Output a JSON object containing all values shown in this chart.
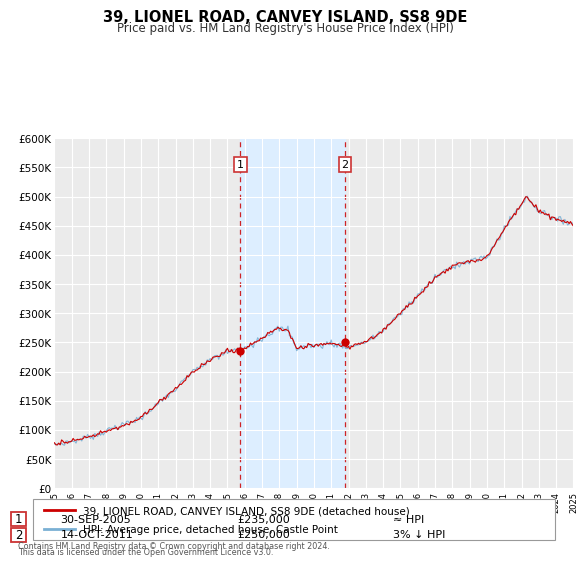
{
  "title": "39, LIONEL ROAD, CANVEY ISLAND, SS8 9DE",
  "subtitle": "Price paid vs. HM Land Registry's House Price Index (HPI)",
  "property_label": "39, LIONEL ROAD, CANVEY ISLAND, SS8 9DE (detached house)",
  "hpi_label": "HPI: Average price, detached house, Castle Point",
  "footer1": "Contains HM Land Registry data © Crown copyright and database right 2024.",
  "footer2": "This data is licensed under the Open Government Licence v3.0.",
  "sale1_date": "30-SEP-2005",
  "sale1_price": "£235,000",
  "sale1_hpi": "≈ HPI",
  "sale1_year": 2005.75,
  "sale1_value": 235000,
  "sale2_date": "14-OCT-2011",
  "sale2_price": "£250,000",
  "sale2_hpi": "3% ↓ HPI",
  "sale2_year": 2011.79,
  "sale2_value": 250000,
  "bg_band_start": 2005.75,
  "bg_band_end": 2011.79,
  "property_color": "#cc0000",
  "hpi_color": "#7ab0d4",
  "band_color": "#ddeeff",
  "plot_bg": "#ebebeb",
  "grid_color": "#ffffff",
  "ylim_min": 0,
  "ylim_max": 600000,
  "xmin": 1995,
  "xmax": 2025
}
